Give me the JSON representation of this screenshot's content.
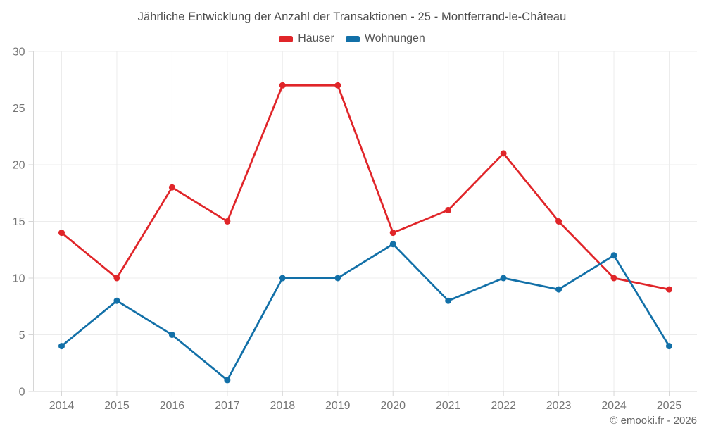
{
  "title": "Jährliche Entwicklung der Anzahl der Transaktionen - 25 - Montferrand-le-Château",
  "legend": [
    {
      "label": "Häuser",
      "color": "#e02529"
    },
    {
      "label": "Wohnungen",
      "color": "#1270a8"
    }
  ],
  "footer": {
    "copyright": "© emooki.fr - 2026"
  },
  "chart_data": {
    "type": "line",
    "title": "Jährliche Entwicklung der Anzahl der Transaktionen - 25 - Montferrand-le-Château",
    "categories": [
      "2014",
      "2015",
      "2016",
      "2017",
      "2018",
      "2019",
      "2020",
      "2021",
      "2022",
      "2023",
      "2024",
      "2025"
    ],
    "series": [
      {
        "name": "Häuser",
        "color": "#e02529",
        "values": [
          14,
          10,
          18,
          15,
          27,
          27,
          14,
          16,
          21,
          15,
          10,
          9
        ]
      },
      {
        "name": "Wohnungen",
        "color": "#1270a8",
        "values": [
          4,
          8,
          5,
          1,
          10,
          10,
          13,
          8,
          10,
          9,
          12,
          4
        ]
      }
    ],
    "xlabel": "",
    "ylabel": "",
    "ylim": [
      0,
      30
    ],
    "ytick_step": 5,
    "grid": true,
    "legend_position": "top",
    "marker": "circle"
  }
}
